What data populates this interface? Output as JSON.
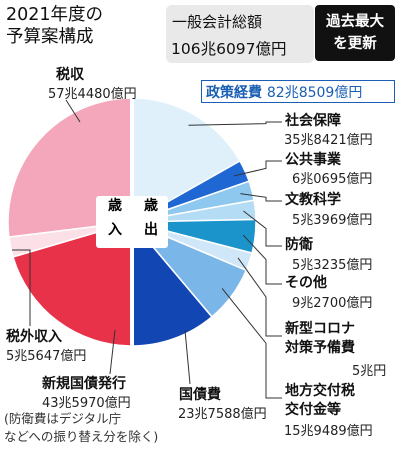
{
  "header": {
    "title_line1": "2021年度の",
    "title_line2": "予算案構成",
    "total_label": "一般会計総額",
    "total_value": "106兆6097億円",
    "record_line1": "過去最大",
    "record_line2": "を更新"
  },
  "policy_expenses": {
    "label": "政策経費",
    "value": "82兆8509億円"
  },
  "center_labels": {
    "revenue": "歳入",
    "expenditure": "歳出"
  },
  "note_line1": "(防衛費はデジタル庁",
  "note_line2": "などへの振り替え分を除く)",
  "colors": {
    "revenue": [
      "#f4a7bb",
      "#fbe0e8",
      "#e8324a"
    ],
    "expenditure": [
      "#dff0fb",
      "#1f67d2",
      "#8fc8ef",
      "#b5dcf5",
      "#1b94cc",
      "#cfe7f8",
      "#7ab6e8",
      "#1146b3"
    ]
  },
  "chart_data": {
    "type": "pie",
    "title": "2021年度の予算案構成",
    "total": "106兆6097億円",
    "revenue": [
      {
        "name": "税収",
        "value_text": "57兆4480億円",
        "value_oku": 574480
      },
      {
        "name": "税外収入",
        "value_text": "5兆5647億円",
        "value_oku": 55647
      },
      {
        "name": "新規国債発行",
        "value_text": "43兆5970億円",
        "value_oku": 435970
      }
    ],
    "expenditure": [
      {
        "name": "社会保障",
        "value_text": "35兆8421億円",
        "value_oku": 358421
      },
      {
        "name": "公共事業",
        "value_text": "6兆0695億円",
        "value_oku": 60695
      },
      {
        "name": "文教科学",
        "value_text": "5兆3969億円",
        "value_oku": 53969
      },
      {
        "name": "防衛",
        "value_text": "5兆3235億円",
        "value_oku": 53235
      },
      {
        "name": "その他",
        "value_text": "9兆2700億円",
        "value_oku": 92700
      },
      {
        "name": "新型コロナ対策予備費",
        "value_text": "5兆円",
        "value_oku": 50000
      },
      {
        "name": "地方交付税交付金等",
        "value_text": "15兆9489億円",
        "value_oku": 159489
      },
      {
        "name": "国債費",
        "value_text": "23兆7588億円",
        "value_oku": 237588
      }
    ]
  }
}
